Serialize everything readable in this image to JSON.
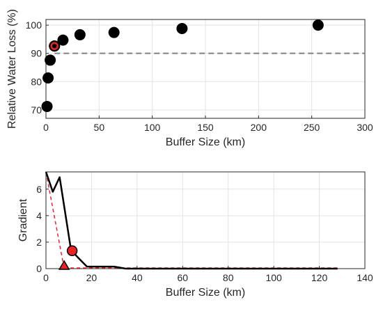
{
  "chart_data": [
    {
      "type": "scatter",
      "xlabel": "Buffer Size (km)",
      "ylabel": "Relative Water Loss (%)",
      "xlim": [
        0,
        300
      ],
      "ylim": [
        67,
        102
      ],
      "xticks": [
        0,
        50,
        100,
        150,
        200,
        250,
        300
      ],
      "yticks": [
        70,
        80,
        90,
        100
      ],
      "grid": true,
      "series": [
        {
          "x": [
            1,
            2,
            4,
            8,
            16,
            32,
            64,
            128,
            256
          ],
          "y": [
            71.2,
            81.3,
            87.6,
            92.6,
            94.7,
            96.6,
            97.4,
            98.8,
            100
          ],
          "color": "#000000"
        }
      ],
      "highlight": {
        "x": 8,
        "y": 92.6,
        "color": "#e8232a"
      },
      "reference_line": {
        "y": 90,
        "style": "dashed",
        "color": "#808080"
      }
    },
    {
      "type": "line",
      "xlabel": "Buffer Size (km)",
      "ylabel": "Gradient",
      "xlim": [
        0,
        140
      ],
      "ylim": [
        0,
        7.3
      ],
      "xticks": [
        0,
        20,
        40,
        60,
        80,
        100,
        120,
        140
      ],
      "yticks": [
        0,
        2,
        4,
        6
      ],
      "grid": true,
      "series": [
        {
          "x": [
            0,
            3,
            6,
            11,
            14,
            18,
            22,
            26,
            30,
            35,
            40,
            60,
            80,
            100,
            120,
            128
          ],
          "y": [
            7.3,
            5.8,
            6.9,
            1.4,
            0.85,
            0.15,
            0.15,
            0.15,
            0.15,
            0.0,
            0.0,
            0.0,
            0.0,
            0.0,
            0.0,
            0.0
          ],
          "color": "#000000"
        }
      ],
      "tangent_line": {
        "x": [
          0,
          8
        ],
        "y": [
          7.3,
          0
        ],
        "style": "dashed",
        "color": "#e8232a"
      },
      "baseline": {
        "x": [
          8,
          128
        ],
        "y": [
          0,
          0
        ],
        "style": "dashed",
        "color": "#e8232a"
      },
      "marker_circle": {
        "x": 11.5,
        "y": 1.35,
        "color": "#e8232a"
      },
      "marker_triangle": {
        "x": 8,
        "y": 0,
        "color": "#e8232a"
      }
    }
  ]
}
